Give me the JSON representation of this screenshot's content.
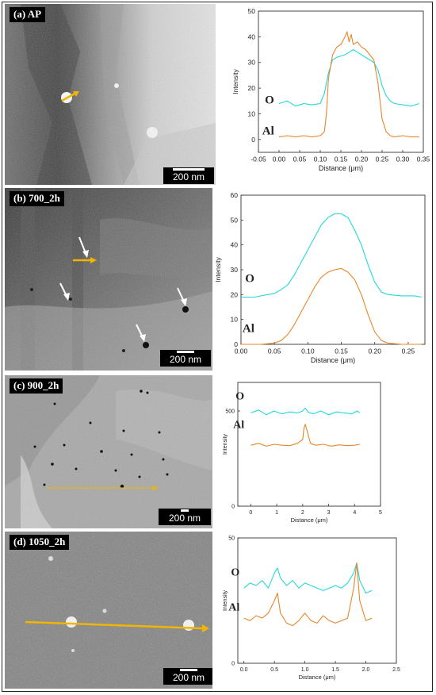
{
  "figure": {
    "panels": [
      {
        "label": "(a) AP",
        "scale_bar": "200 nm"
      },
      {
        "label": "(b) 700_2h",
        "scale_bar": "200 nm"
      },
      {
        "label": "(c) 900_2h",
        "scale_bar": "200 nm"
      },
      {
        "label": "(d) 1050_2h",
        "scale_bar": "200 nm"
      }
    ]
  },
  "colors": {
    "O": "#22d8dc",
    "Al": "#e8862a",
    "arrow": "#f1b500"
  },
  "chart_data": [
    {
      "type": "line",
      "xlabel": "Distance (μm)",
      "ylabel": "Intensity",
      "xlim": [
        -0.05,
        0.35
      ],
      "ylim": [
        -5,
        50
      ],
      "xticks": [
        -0.05,
        0.0,
        0.05,
        0.1,
        0.15,
        0.2,
        0.25,
        0.3,
        0.35
      ],
      "xtick_labels": [
        "-0.05",
        "0.00",
        "0.05",
        "0.10",
        "0.15",
        "0.20",
        "0.25",
        "0.30",
        "0.35"
      ],
      "yticks": [
        0,
        10,
        20,
        30,
        40,
        50
      ],
      "ytick_labels": [
        "0",
        "10",
        "20",
        "30",
        "40",
        "50"
      ],
      "series": [
        {
          "name": "O",
          "label_pos": [
            -0.012,
            14
          ],
          "x": [
            0.0,
            0.02,
            0.04,
            0.06,
            0.08,
            0.1,
            0.11,
            0.12,
            0.13,
            0.14,
            0.15,
            0.16,
            0.17,
            0.18,
            0.19,
            0.2,
            0.21,
            0.22,
            0.23,
            0.24,
            0.25,
            0.26,
            0.27,
            0.28,
            0.3,
            0.32,
            0.34
          ],
          "y": [
            14,
            15,
            13,
            14,
            13.5,
            14,
            18,
            26,
            31,
            32,
            32.5,
            33,
            34,
            35,
            34,
            33,
            32,
            31,
            30,
            27,
            21,
            17,
            15,
            14,
            13.5,
            13,
            14
          ]
        },
        {
          "name": "Al",
          "label_pos": [
            -0.012,
            2
          ],
          "x": [
            0.0,
            0.02,
            0.04,
            0.06,
            0.08,
            0.1,
            0.11,
            0.115,
            0.12,
            0.13,
            0.14,
            0.15,
            0.16,
            0.165,
            0.17,
            0.175,
            0.18,
            0.19,
            0.2,
            0.21,
            0.22,
            0.23,
            0.24,
            0.25,
            0.26,
            0.27,
            0.28,
            0.3,
            0.32,
            0.34
          ],
          "y": [
            1,
            1.5,
            1,
            1.5,
            1,
            1.5,
            3,
            10,
            24,
            33,
            36,
            37,
            40,
            42,
            38,
            41,
            37,
            38,
            36,
            35,
            33,
            31,
            22,
            8,
            3,
            1.5,
            1,
            1.5,
            1,
            1
          ]
        }
      ]
    },
    {
      "type": "line",
      "xlabel": "Distance (μm)",
      "ylabel": "Intensity",
      "xlim": [
        0,
        0.275
      ],
      "ylim": [
        0,
        60
      ],
      "xticks": [
        0.0,
        0.05,
        0.1,
        0.15,
        0.2,
        0.25
      ],
      "xtick_labels": [
        "0.00",
        "0.05",
        "0.10",
        "0.15",
        "0.20",
        "0.25"
      ],
      "yticks": [
        0,
        10,
        20,
        30,
        40,
        50,
        60
      ],
      "ytick_labels": [
        "0",
        "10",
        "20",
        "30",
        "40",
        "50",
        "60"
      ],
      "series": [
        {
          "name": "O",
          "label_pos": [
            0.02,
            25
          ],
          "x": [
            0.0,
            0.02,
            0.04,
            0.05,
            0.06,
            0.07,
            0.08,
            0.09,
            0.1,
            0.11,
            0.12,
            0.13,
            0.14,
            0.15,
            0.16,
            0.17,
            0.18,
            0.19,
            0.2,
            0.21,
            0.22,
            0.24,
            0.26,
            0.27
          ],
          "y": [
            19,
            19,
            20,
            20.5,
            22,
            24,
            28,
            33,
            38,
            43,
            48,
            51,
            52.5,
            52.5,
            51,
            46,
            40,
            32,
            25,
            21,
            20,
            19.5,
            19.5,
            19
          ]
        },
        {
          "name": "Al",
          "label_pos": [
            0.02,
            5
          ],
          "x": [
            0.0,
            0.03,
            0.05,
            0.06,
            0.07,
            0.08,
            0.09,
            0.1,
            0.11,
            0.12,
            0.13,
            0.14,
            0.15,
            0.16,
            0.17,
            0.18,
            0.19,
            0.2,
            0.21,
            0.22,
            0.24,
            0.27
          ],
          "y": [
            0,
            0,
            0.5,
            1.5,
            4,
            8,
            13,
            18,
            23,
            27,
            29,
            30,
            30.5,
            29,
            26,
            20,
            12,
            5,
            1.5,
            0.5,
            0,
            0
          ]
        }
      ]
    },
    {
      "type": "line",
      "xlabel": "Distance (μm)",
      "ylabel": "Intensity",
      "xlim": [
        -0.5,
        5
      ],
      "ylim": [
        0,
        650
      ],
      "xticks": [
        0,
        1,
        2,
        3,
        4,
        5
      ],
      "xtick_labels": [
        "0",
        "1",
        "2",
        "3",
        "4",
        "5"
      ],
      "yticks": [
        0,
        500
      ],
      "ytick_labels": [
        "0",
        "500"
      ],
      "series": [
        {
          "name": "O",
          "label_pos": [
            -0.25,
            560
          ],
          "x": [
            0.0,
            0.3,
            0.6,
            0.9,
            1.2,
            1.5,
            1.8,
            2.0,
            2.1,
            2.2,
            2.4,
            2.7,
            3.0,
            3.3,
            3.6,
            3.9,
            4.1,
            4.2
          ],
          "y": [
            490,
            505,
            480,
            500,
            485,
            495,
            490,
            500,
            515,
            495,
            485,
            500,
            480,
            495,
            490,
            485,
            500,
            490
          ]
        },
        {
          "name": "Al",
          "label_pos": [
            -0.25,
            410
          ],
          "x": [
            0.0,
            0.3,
            0.6,
            0.9,
            1.2,
            1.5,
            1.8,
            2.0,
            2.05,
            2.1,
            2.2,
            2.3,
            2.5,
            2.8,
            3.1,
            3.4,
            3.7,
            4.0,
            4.2
          ],
          "y": [
            320,
            330,
            315,
            325,
            320,
            318,
            330,
            350,
            410,
            430,
            380,
            330,
            320,
            325,
            315,
            322,
            318,
            320,
            325
          ]
        }
      ]
    },
    {
      "type": "line",
      "xlabel": "Distance (μm)",
      "ylabel": "Intensity",
      "xlim": [
        -0.1,
        2.5
      ],
      "ylim": [
        0,
        50
      ],
      "xticks": [
        0.0,
        0.5,
        1.0,
        1.5,
        2.0,
        2.5
      ],
      "xtick_labels": [
        "0.0",
        "0.5",
        "1.0",
        "1.5",
        "2.0",
        "2.5"
      ],
      "yticks": [
        0,
        50
      ],
      "ytick_labels": [
        "0",
        "50"
      ],
      "series": [
        {
          "name": "O",
          "label_pos": [
            -0.07,
            35
          ],
          "x": [
            0.0,
            0.1,
            0.2,
            0.3,
            0.4,
            0.5,
            0.55,
            0.6,
            0.7,
            0.8,
            0.9,
            1.0,
            1.1,
            1.2,
            1.3,
            1.4,
            1.5,
            1.6,
            1.7,
            1.8,
            1.85,
            1.9,
            2.0,
            2.1
          ],
          "y": [
            30,
            32,
            31,
            33,
            30,
            36,
            38,
            34,
            31,
            33,
            30,
            32,
            31,
            30,
            29,
            30,
            31,
            30,
            32,
            36,
            40,
            33,
            28,
            29
          ]
        },
        {
          "name": "Al",
          "label_pos": [
            -0.07,
            21
          ],
          "x": [
            0.0,
            0.1,
            0.2,
            0.3,
            0.4,
            0.5,
            0.55,
            0.6,
            0.7,
            0.8,
            0.9,
            1.0,
            1.1,
            1.2,
            1.3,
            1.4,
            1.5,
            1.6,
            1.7,
            1.8,
            1.85,
            1.9,
            2.0,
            2.1
          ],
          "y": [
            18,
            17,
            19,
            18,
            20,
            25,
            28,
            20,
            16,
            15,
            17,
            20,
            17,
            16,
            19,
            17,
            16,
            17,
            18,
            30,
            40,
            25,
            17,
            18
          ]
        }
      ]
    }
  ]
}
